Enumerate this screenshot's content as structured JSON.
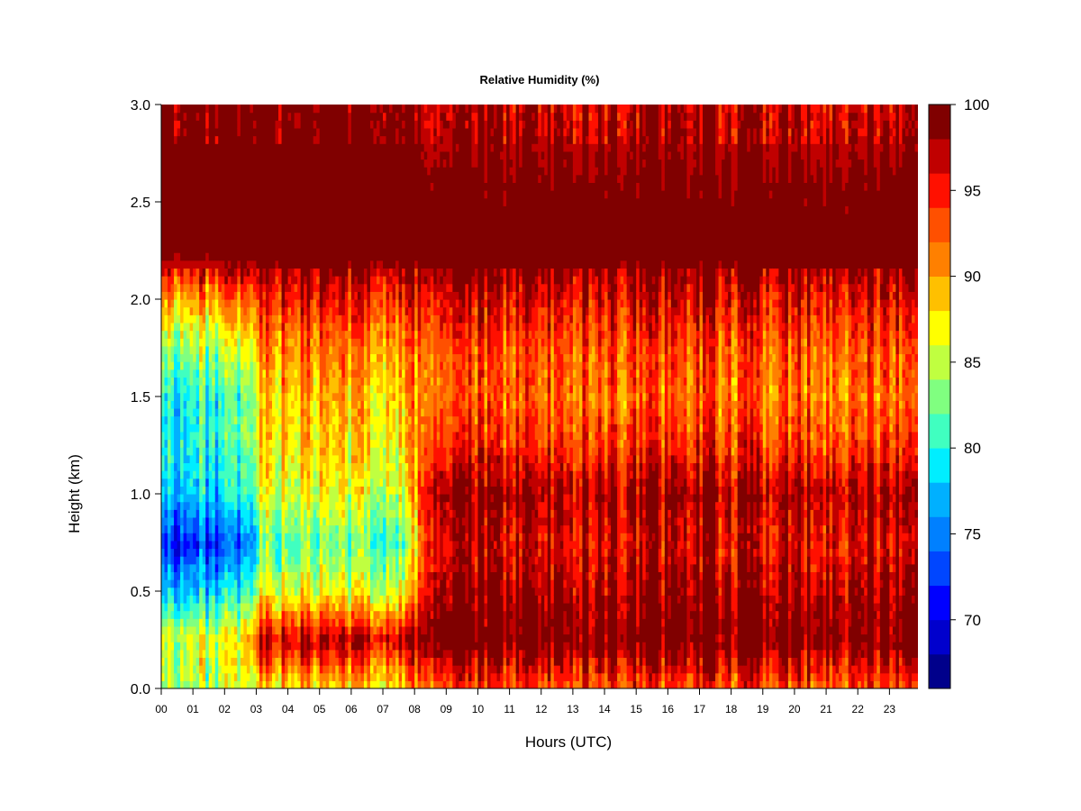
{
  "chart_data": {
    "type": "heatmap",
    "title": "Relative Humidity (%)",
    "xlabel": "Hours (UTC)",
    "ylabel": "Height (km)",
    "x_ticks": [
      "00",
      "01",
      "02",
      "03",
      "04",
      "05",
      "06",
      "07",
      "08",
      "09",
      "10",
      "11",
      "12",
      "13",
      "14",
      "15",
      "16",
      "17",
      "18",
      "19",
      "20",
      "21",
      "22",
      "23"
    ],
    "y_ticks": [
      "0.0",
      "0.5",
      "1.0",
      "1.5",
      "2.0",
      "2.5",
      "3.0"
    ],
    "xlim": [
      0,
      23.9
    ],
    "ylim": [
      0,
      3.0
    ],
    "colorbar": {
      "label": "",
      "ticks": [
        "70",
        "75",
        "80",
        "85",
        "90",
        "95",
        "100"
      ],
      "range": [
        66,
        100
      ],
      "levels": [
        66,
        68,
        70,
        72,
        74,
        76,
        78,
        80,
        82,
        84,
        86,
        88,
        90,
        92,
        94,
        96,
        98,
        100
      ],
      "colors": [
        "#00008B",
        "#0000CD",
        "#0000FF",
        "#0046FF",
        "#0080FF",
        "#00B0FF",
        "#00EEFF",
        "#40FFC0",
        "#80FF80",
        "#C0FF40",
        "#FFFF00",
        "#FFC000",
        "#FF8000",
        "#FF5000",
        "#FF1000",
        "#C00000",
        "#800000"
      ]
    },
    "summary_profiles": [
      {
        "hours": "00-02",
        "heights_km": [
          0.0,
          0.25,
          0.5,
          0.75,
          1.0,
          1.25,
          1.5,
          1.75,
          2.0,
          2.25,
          2.5,
          3.0
        ],
        "rh_percent": [
          84,
          86,
          78,
          72,
          78,
          80,
          80,
          84,
          90,
          100,
          100,
          100
        ]
      },
      {
        "hours": "03-07",
        "heights_km": [
          0.0,
          0.25,
          0.5,
          0.75,
          1.0,
          1.25,
          1.5,
          1.75,
          2.0,
          2.25,
          2.5,
          3.0
        ],
        "rh_percent": [
          88,
          97,
          86,
          82,
          86,
          88,
          89,
          91,
          95,
          100,
          100,
          100
        ]
      },
      {
        "hours": "08-23",
        "heights_km": [
          0.0,
          0.25,
          0.5,
          0.75,
          1.0,
          1.25,
          1.5,
          1.75,
          2.0,
          2.25,
          2.5,
          3.0
        ],
        "rh_percent": [
          93,
          100,
          98,
          96,
          98,
          94,
          92,
          93,
          96,
          100,
          99,
          97
        ]
      }
    ]
  }
}
